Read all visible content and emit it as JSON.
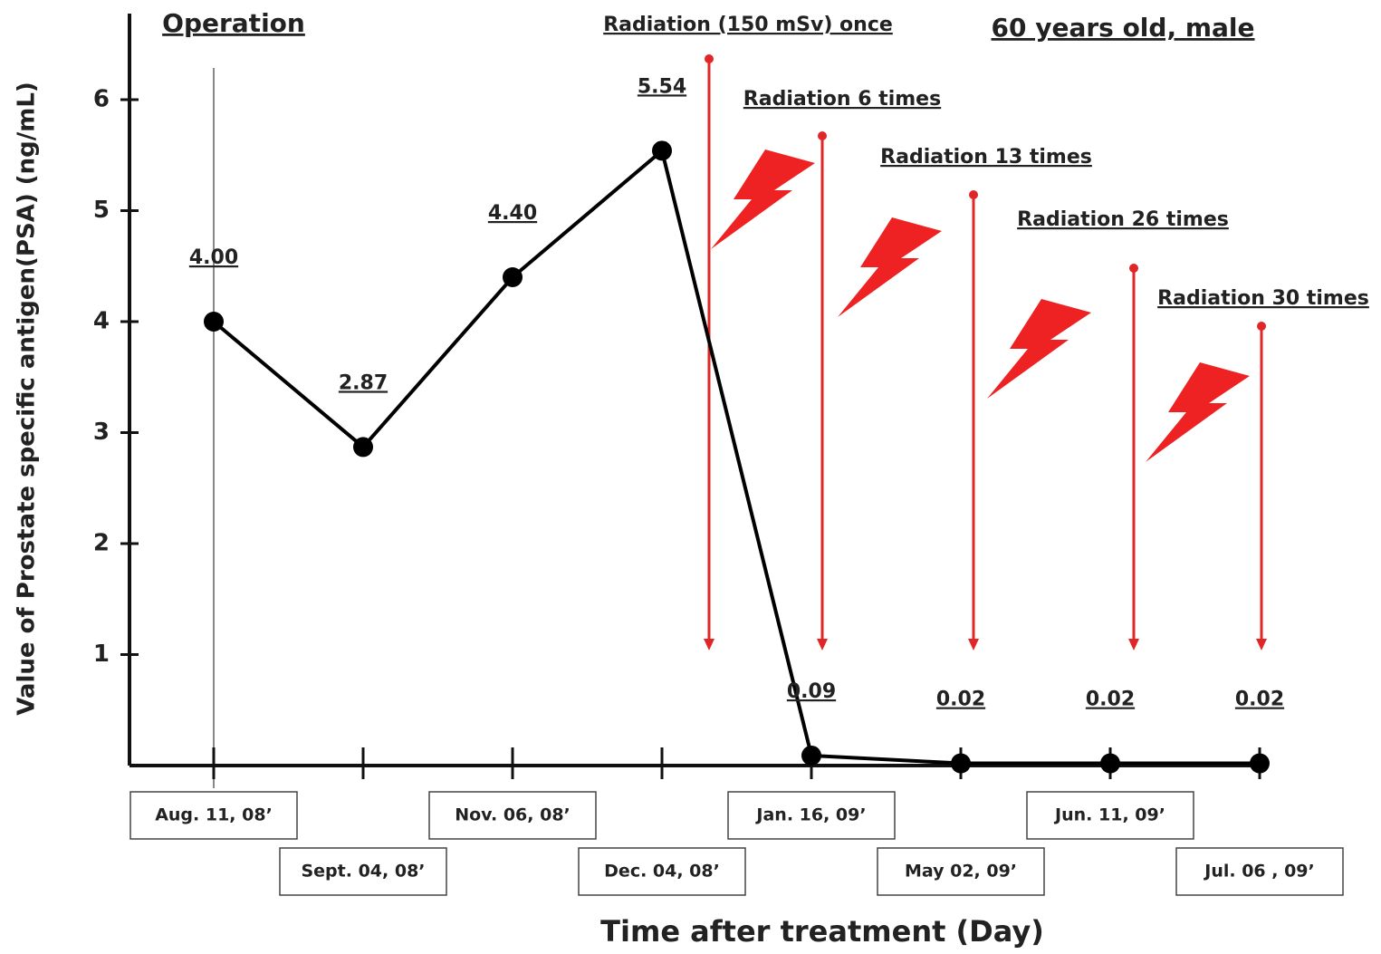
{
  "chart_data": {
    "type": "line",
    "y_label": "Value of Prostate specific antigen(PSA) (ng/mL)",
    "x_label": "Time after treatment (Day)",
    "annotations": {
      "operation": "Operation",
      "patient": "60 years old, male",
      "radiation": [
        "Radiation (150 mSv) once",
        "Radiation 6 times",
        "Radiation 13 times",
        "Radiation 26 times",
        "Radiation 30 times"
      ]
    },
    "categories": [
      "Aug. 11, 08’",
      "Sept. 04, 08’",
      "Nov. 06, 08’",
      "Dec. 04, 08’",
      "Jan. 16, 09’",
      "May 02, 09’",
      "Jun. 11, 09’",
      "Jul. 06 , 09’"
    ],
    "values": [
      4.0,
      2.87,
      4.4,
      5.54,
      0.09,
      0.02,
      0.02,
      0.02
    ],
    "value_labels": [
      "4.00",
      "2.87",
      "4.40",
      "5.54",
      "0.09",
      "0.02",
      "0.02",
      "0.02"
    ],
    "color": "#000000",
    "radiation_color": "#e02626",
    "ylim": [
      0,
      6.8
    ],
    "yticks": [
      1,
      2,
      3,
      4,
      5,
      6
    ]
  }
}
